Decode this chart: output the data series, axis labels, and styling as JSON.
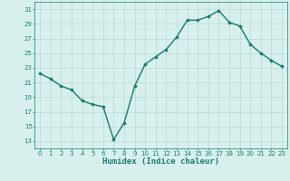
{
  "x": [
    0,
    1,
    2,
    3,
    4,
    5,
    6,
    7,
    8,
    9,
    10,
    11,
    12,
    13,
    14,
    15,
    16,
    17,
    18,
    19,
    20,
    21,
    22,
    23
  ],
  "y": [
    22.2,
    21.5,
    20.5,
    20.0,
    18.5,
    18.0,
    17.7,
    13.2,
    15.5,
    20.5,
    23.5,
    24.5,
    25.5,
    27.2,
    29.5,
    29.5,
    30.0,
    30.8,
    29.2,
    28.7,
    26.2,
    25.0,
    24.0,
    23.2
  ],
  "line_color": "#1a7a6e",
  "marker": "D",
  "marker_size": 1.8,
  "bg_color": "#d7f0ee",
  "grid_color": "#b8d8d4",
  "xlabel": "Humidex (Indice chaleur)",
  "xlabel_fontsize": 6.5,
  "xlabel_color": "#1a7a6e",
  "tick_color": "#1a7a6e",
  "ylim": [
    12,
    32
  ],
  "yticks": [
    13,
    15,
    17,
    19,
    21,
    23,
    25,
    27,
    29,
    31
  ],
  "xticks": [
    0,
    1,
    2,
    3,
    4,
    5,
    6,
    7,
    8,
    9,
    10,
    11,
    12,
    13,
    14,
    15,
    16,
    17,
    18,
    19,
    20,
    21,
    22,
    23
  ],
  "line_width": 1.0,
  "tick_fontsize": 5.0
}
